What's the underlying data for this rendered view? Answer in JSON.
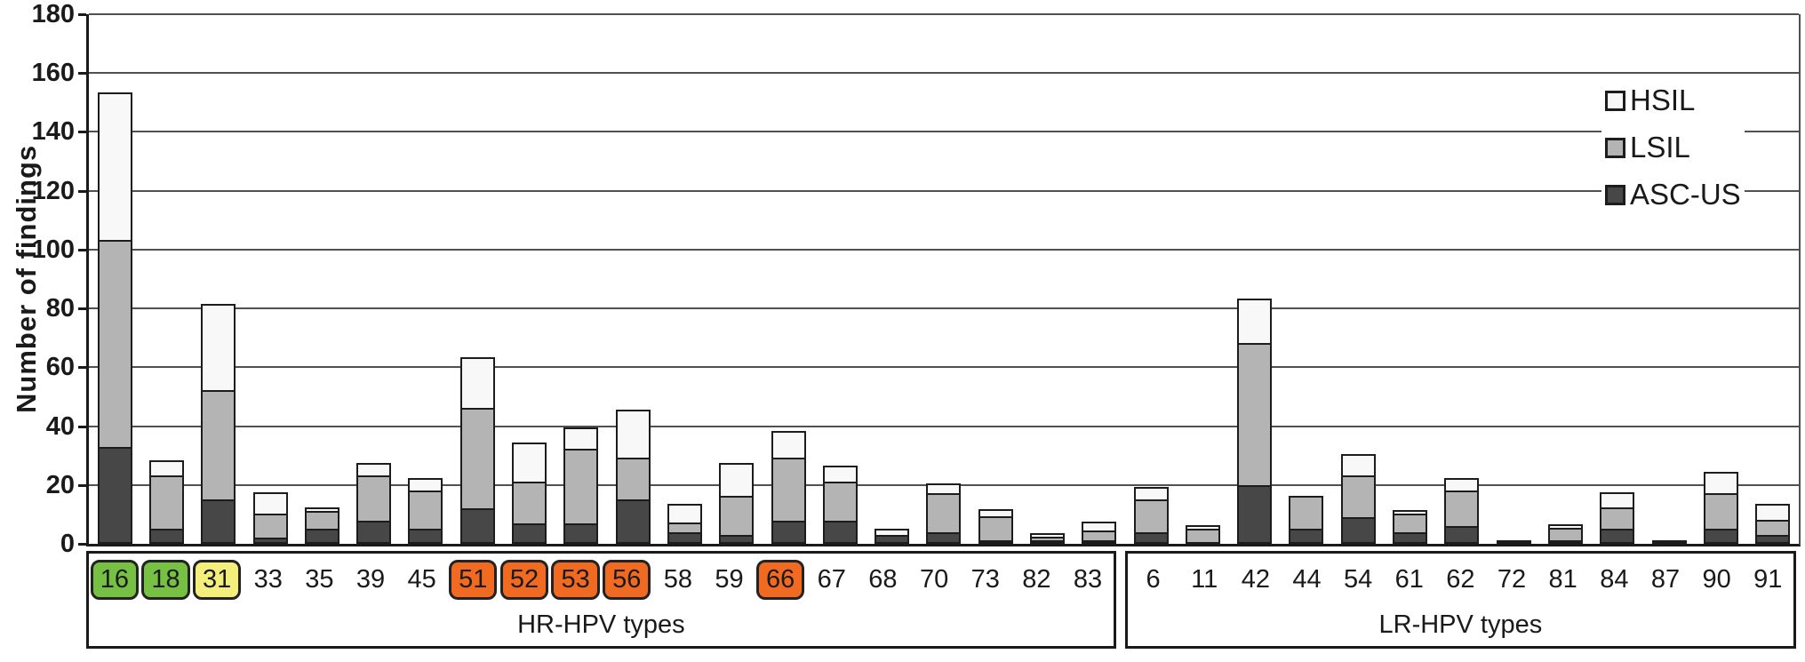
{
  "chart_data": {
    "type": "bar",
    "stacked": true,
    "ylabel": "Number of findings",
    "ylim": [
      0,
      180
    ],
    "yticks": [
      180,
      160,
      140,
      120,
      100,
      80,
      60,
      40,
      20,
      0
    ],
    "grid": "horizontal",
    "legend_position": "top-right",
    "categories": [
      "16",
      "18",
      "31",
      "33",
      "35",
      "39",
      "45",
      "51",
      "52",
      "53",
      "56",
      "58",
      "59",
      "66",
      "67",
      "68",
      "70",
      "73",
      "82",
      "83",
      "6",
      "11",
      "42",
      "44",
      "54",
      "61",
      "62",
      "72",
      "81",
      "84",
      "87",
      "90",
      "91"
    ],
    "series": [
      {
        "name": "ASC-US",
        "color": "#474747",
        "values": [
          33,
          5,
          15,
          2,
          5,
          8,
          5,
          12,
          7,
          7,
          15,
          4,
          3,
          8,
          8,
          3,
          4,
          1,
          1,
          1,
          4,
          0,
          20,
          5,
          9,
          4,
          6,
          1,
          1,
          5,
          1,
          5,
          3
        ]
      },
      {
        "name": "LSIL",
        "color": "#b4b4b4",
        "values": [
          71,
          19,
          38,
          9,
          7,
          16,
          14,
          35,
          15,
          26,
          15,
          4,
          14,
          22,
          14,
          0,
          14,
          9,
          2,
          4,
          12,
          5,
          49,
          12,
          15,
          7,
          13,
          0,
          5,
          8,
          0,
          13,
          6
        ]
      },
      {
        "name": "HSIL",
        "color": "#f8f8f8",
        "values": [
          51,
          6,
          30,
          8,
          2,
          5,
          5,
          18,
          14,
          8,
          17,
          7,
          12,
          10,
          6,
          3,
          4,
          3,
          2,
          4,
          5,
          2,
          16,
          0,
          8,
          2,
          5,
          0,
          2,
          6,
          0,
          8,
          6
        ]
      }
    ],
    "legend": [
      {
        "label": "HSIL",
        "color": "#f8f8f8"
      },
      {
        "label": "LSIL",
        "color": "#b4b4b4"
      },
      {
        "label": "ASC-US",
        "color": "#474747"
      }
    ],
    "groups": [
      {
        "label": "HR-HPV types",
        "count": 20
      },
      {
        "label": "LR-HPV types",
        "count": 13
      }
    ],
    "highlights": {
      "16": "green",
      "18": "green",
      "31": "yellow",
      "51": "orange",
      "52": "orange",
      "53": "orange",
      "56": "orange",
      "66": "orange"
    },
    "highlight_colors": {
      "green": "#76c043",
      "yellow": "#f4ef7c",
      "orange": "#f06b21"
    }
  }
}
